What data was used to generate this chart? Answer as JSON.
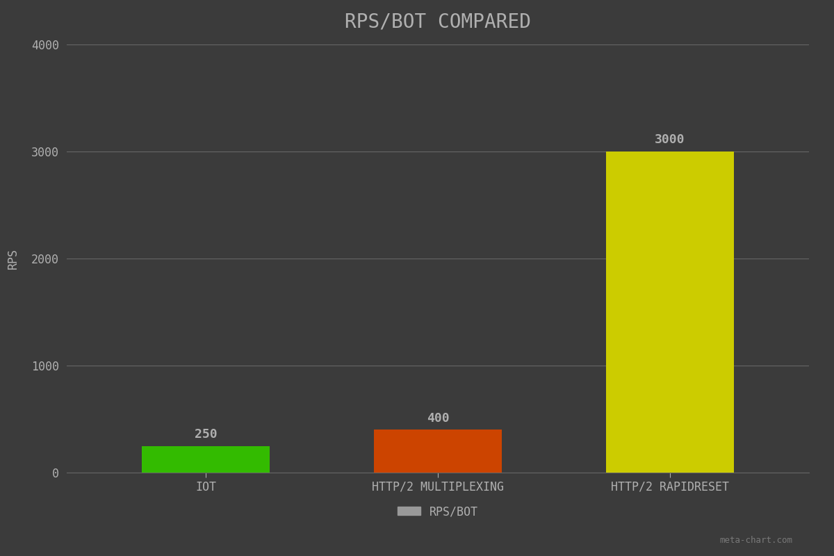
{
  "title": "RPS/BOT COMPARED",
  "categories": [
    "IoT",
    "HTTP/2 Multiplexing",
    "HTTP/2 RapidReset"
  ],
  "values": [
    250,
    400,
    3000
  ],
  "bar_colors": [
    "#33bb00",
    "#cc4400",
    "#cccc00"
  ],
  "ylabel": "RPS",
  "ylim": [
    0,
    4000
  ],
  "yticks": [
    0,
    1000,
    2000,
    3000,
    4000
  ],
  "background_color": "#3b3b3b",
  "text_color": "#b0b0b0",
  "grid_color": "#666666",
  "title_fontsize": 20,
  "axis_label_fontsize": 12,
  "tick_fontsize": 12,
  "value_label_fontsize": 13,
  "legend_label": "RPS/BOT",
  "legend_color": "#999999",
  "watermark": "meta-chart.com"
}
